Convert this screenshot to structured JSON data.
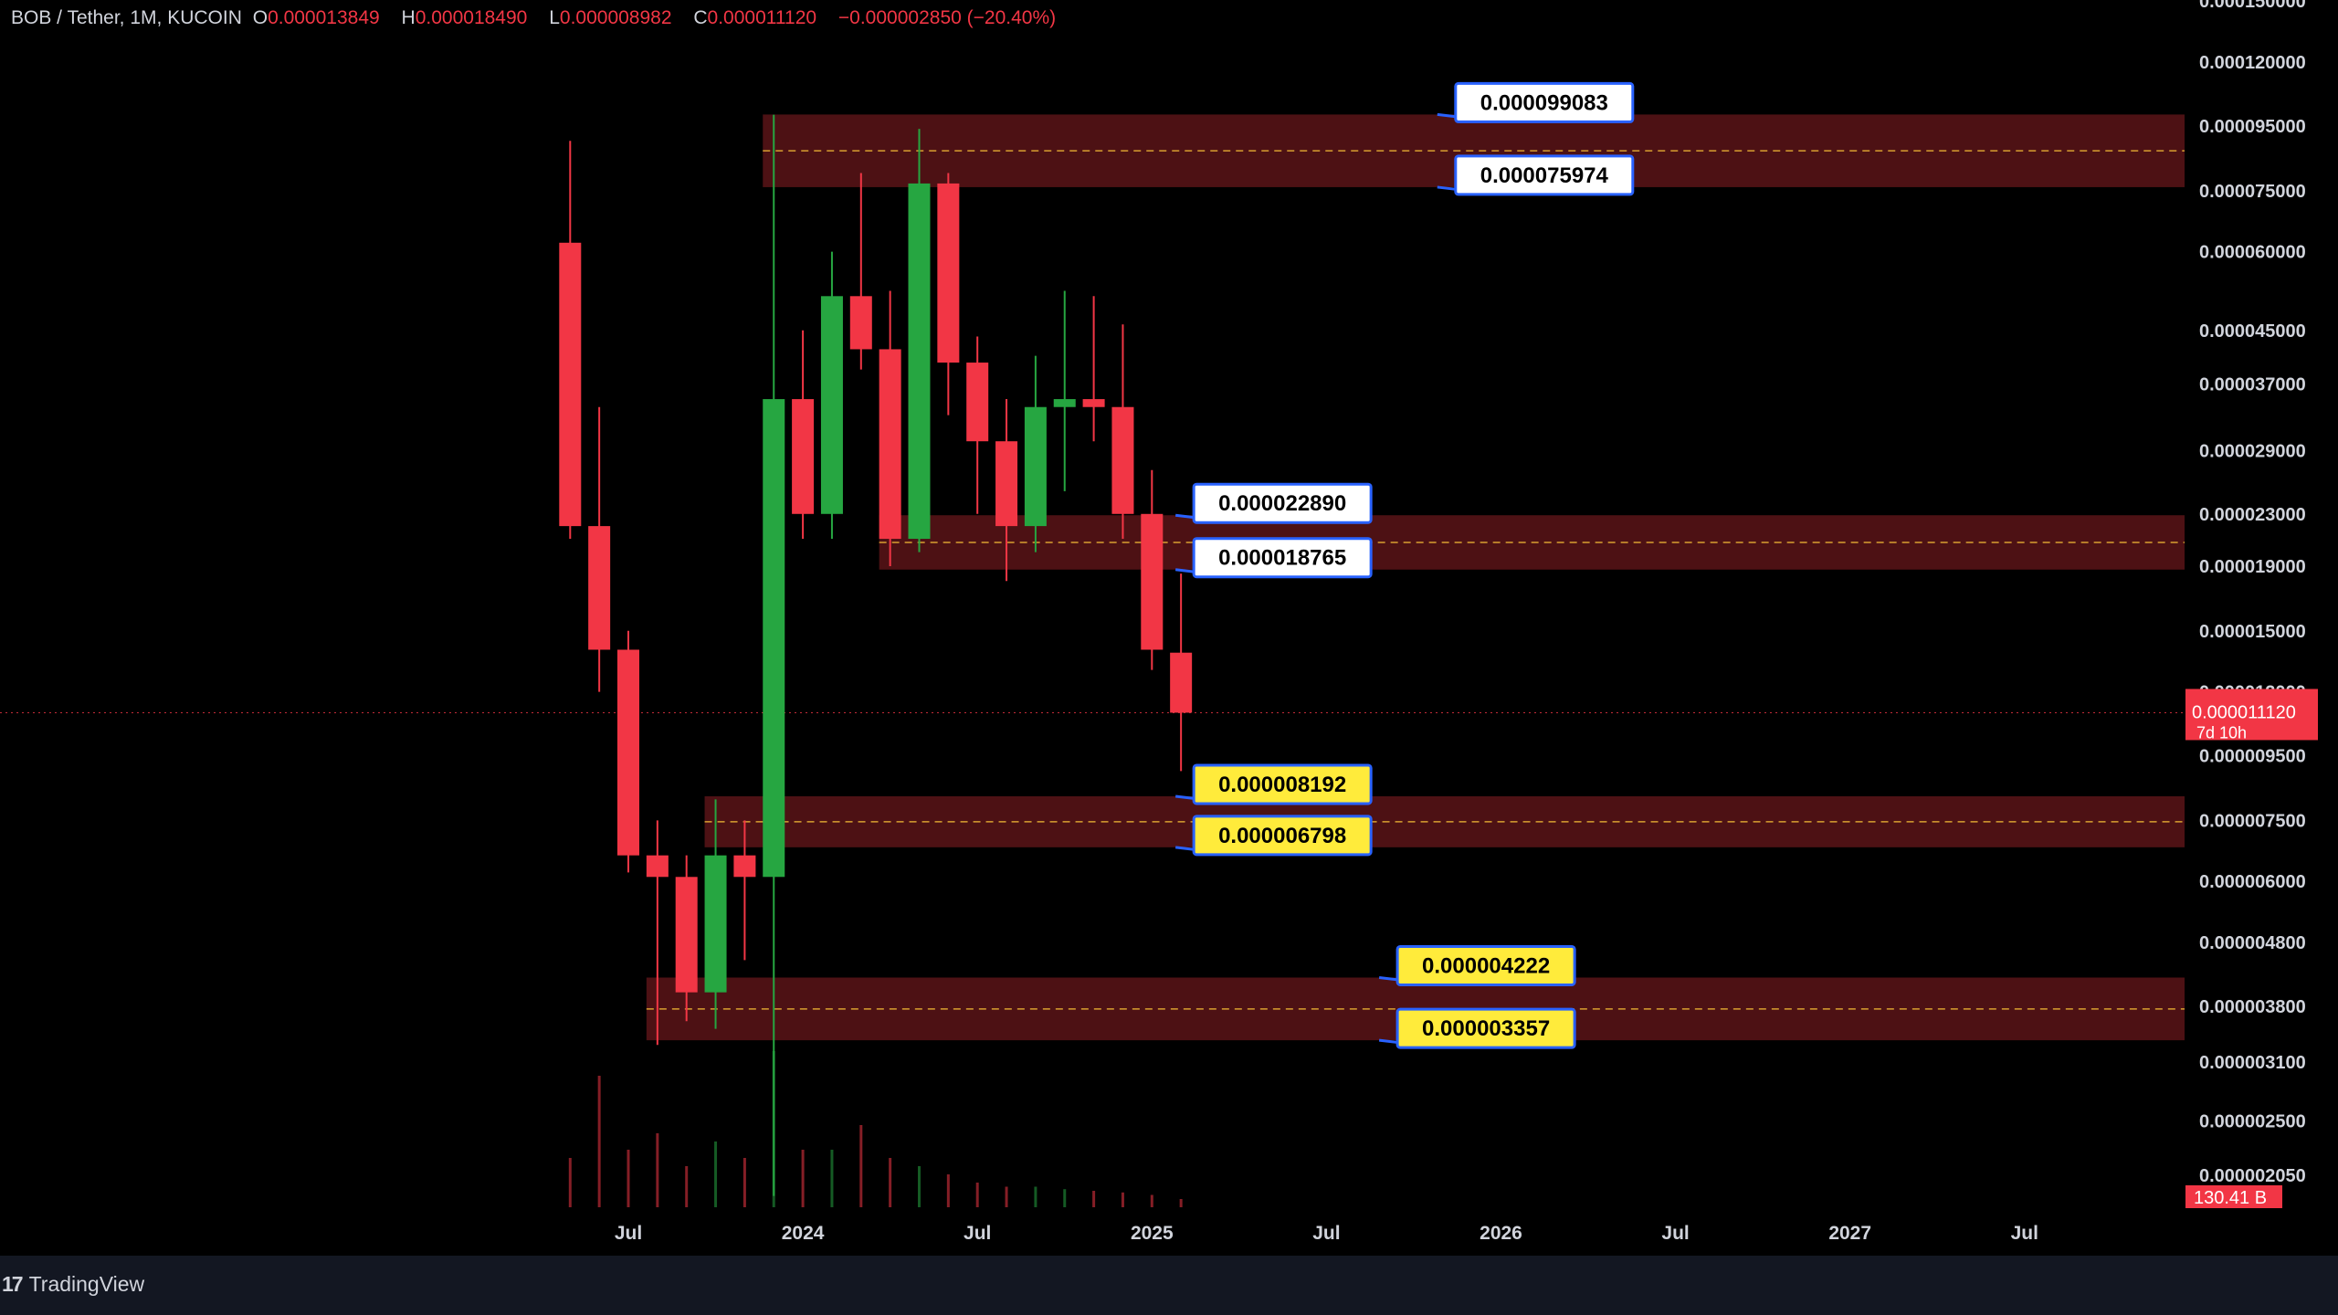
{
  "header": {
    "symbol": "BOB / Tether, 1M, KUCOIN",
    "o_label": "O",
    "o_value": "0.000013849",
    "h_label": "H",
    "h_value": "0.000018490",
    "l_label": "L",
    "l_value": "0.000008982",
    "c_label": "C",
    "c_value": "0.000011120",
    "change": "−0.000002850 (−20.40%)"
  },
  "footer": {
    "brand": "TradingView"
  },
  "colors": {
    "background": "#000000",
    "up": "#26a641",
    "down": "#f23645",
    "zone": "#5a1418",
    "zone_mid": "#d9a030",
    "label_white": "#ffffff",
    "label_yellow": "#ffeb3b",
    "label_border": "#2962ff",
    "price_tag": "#f23645"
  },
  "chart_data": {
    "type": "candlestick",
    "y_scale": "log",
    "ylim": [
      1.8e-06,
      0.00015
    ],
    "y_ticks": [
      "0.000150000",
      "0.000120000",
      "0.000095000",
      "0.000075000",
      "0.000060000",
      "0.000045000",
      "0.000037000",
      "0.000029000",
      "0.000023000",
      "0.000019000",
      "0.000015000",
      "0.000012000",
      "0.000009500",
      "0.000007500",
      "0.000006000",
      "0.000004800",
      "0.000003800",
      "0.000003100",
      "0.000002500",
      "0.000002050"
    ],
    "x_ticks": [
      {
        "label": "Jul",
        "x": "2023-07"
      },
      {
        "label": "2024",
        "x": "2024-01"
      },
      {
        "label": "Jul",
        "x": "2024-07"
      },
      {
        "label": "2025",
        "x": "2025-01"
      },
      {
        "label": "Jul",
        "x": "2025-07"
      },
      {
        "label": "2026",
        "x": "2026-01"
      },
      {
        "label": "Jul",
        "x": "2026-07"
      },
      {
        "label": "2027",
        "x": "2027-01"
      },
      {
        "label": "Jul",
        "x": "2027-07"
      }
    ],
    "candles": [
      {
        "date": "2023-05",
        "o": 6.2e-05,
        "h": 9e-05,
        "l": 2.1e-05,
        "c": 2.2e-05
      },
      {
        "date": "2023-06",
        "o": 2.2e-05,
        "h": 3.4e-05,
        "l": 1.2e-05,
        "c": 1.4e-05
      },
      {
        "date": "2023-07",
        "o": 1.4e-05,
        "h": 1.5e-05,
        "l": 6.2e-06,
        "c": 6.6e-06
      },
      {
        "date": "2023-08",
        "o": 6.6e-06,
        "h": 7.5e-06,
        "l": 3.3e-06,
        "c": 6.1e-06
      },
      {
        "date": "2023-09",
        "o": 6.1e-06,
        "h": 6.6e-06,
        "l": 3.6e-06,
        "c": 4e-06
      },
      {
        "date": "2023-10",
        "o": 4e-06,
        "h": 8.1e-06,
        "l": 3.5e-06,
        "c": 6.6e-06
      },
      {
        "date": "2023-11",
        "o": 6.6e-06,
        "h": 7.5e-06,
        "l": 4.5e-06,
        "c": 6.1e-06
      },
      {
        "date": "2023-12",
        "o": 6.1e-06,
        "h": 9.9e-05,
        "l": 1.9e-06,
        "c": 3.5e-05
      },
      {
        "date": "2024-01",
        "o": 3.5e-05,
        "h": 4.5e-05,
        "l": 2.1e-05,
        "c": 2.3e-05
      },
      {
        "date": "2024-02",
        "o": 2.3e-05,
        "h": 6e-05,
        "l": 2.1e-05,
        "c": 5.1e-05
      },
      {
        "date": "2024-03",
        "o": 5.1e-05,
        "h": 8e-05,
        "l": 3.9e-05,
        "c": 4.2e-05
      },
      {
        "date": "2024-04",
        "o": 4.2e-05,
        "h": 5.2e-05,
        "l": 1.9e-05,
        "c": 2.1e-05
      },
      {
        "date": "2024-05",
        "o": 2.1e-05,
        "h": 9.4e-05,
        "l": 2e-05,
        "c": 7.7e-05
      },
      {
        "date": "2024-06",
        "o": 7.7e-05,
        "h": 8e-05,
        "l": 3.3e-05,
        "c": 4e-05
      },
      {
        "date": "2024-07",
        "o": 4e-05,
        "h": 4.4e-05,
        "l": 2.3e-05,
        "c": 3e-05
      },
      {
        "date": "2024-08",
        "o": 3e-05,
        "h": 3.5e-05,
        "l": 1.8e-05,
        "c": 2.2e-05
      },
      {
        "date": "2024-09",
        "o": 2.2e-05,
        "h": 4.1e-05,
        "l": 2e-05,
        "c": 3.4e-05
      },
      {
        "date": "2024-10",
        "o": 3.4e-05,
        "h": 5.2e-05,
        "l": 2.5e-05,
        "c": 3.5e-05
      },
      {
        "date": "2024-11",
        "o": 3.5e-05,
        "h": 5.1e-05,
        "l": 3e-05,
        "c": 3.4e-05
      },
      {
        "date": "2024-12",
        "o": 3.4e-05,
        "h": 4.6e-05,
        "l": 2.1e-05,
        "c": 2.3e-05
      },
      {
        "date": "2025-01",
        "o": 2.3e-05,
        "h": 2.7e-05,
        "l": 1.3e-05,
        "c": 1.4e-05
      },
      {
        "date": "2025-02",
        "o": 1.3849e-05,
        "h": 1.849e-05,
        "l": 8.982e-06,
        "c": 1.112e-05
      }
    ],
    "volume": [
      0.6,
      1.6,
      0.7,
      0.9,
      0.5,
      0.8,
      0.6,
      1.9,
      0.7,
      0.7,
      1.0,
      0.6,
      0.5,
      0.4,
      0.3,
      0.25,
      0.25,
      0.22,
      0.2,
      0.18,
      0.15,
      0.1
    ],
    "volume_label": "130.41 B",
    "current_price": "0.000011120",
    "countdown": "7d 10h",
    "zones": [
      {
        "top": 9.9083e-05,
        "bottom": 7.5974e-05,
        "start": "2023-12"
      },
      {
        "top": 2.289e-05,
        "bottom": 1.8765e-05,
        "start": "2024-04"
      },
      {
        "top": 8.192e-06,
        "bottom": 6.798e-06,
        "start": "2023-10"
      },
      {
        "top": 4.222e-06,
        "bottom": 3.357e-06,
        "start": "2023-08"
      }
    ],
    "labels": [
      {
        "text": "0.000099083",
        "price": 9.9083e-05,
        "style": "white",
        "date": "2025-11"
      },
      {
        "text": "0.000075974",
        "price": 7.5974e-05,
        "style": "white",
        "date": "2025-11"
      },
      {
        "text": "0.000022890",
        "price": 2.289e-05,
        "style": "white",
        "date": "2025-02"
      },
      {
        "text": "0.000018765",
        "price": 1.8765e-05,
        "style": "white",
        "date": "2025-02"
      },
      {
        "text": "0.000008192",
        "price": 8.192e-06,
        "style": "yellow",
        "date": "2025-02"
      },
      {
        "text": "0.000006798",
        "price": 6.798e-06,
        "style": "yellow",
        "date": "2025-02"
      },
      {
        "text": "0.000004222",
        "price": 4.222e-06,
        "style": "yellow",
        "date": "2025-09"
      },
      {
        "text": "0.000003357",
        "price": 3.357e-06,
        "style": "yellow",
        "date": "2025-09"
      }
    ]
  }
}
